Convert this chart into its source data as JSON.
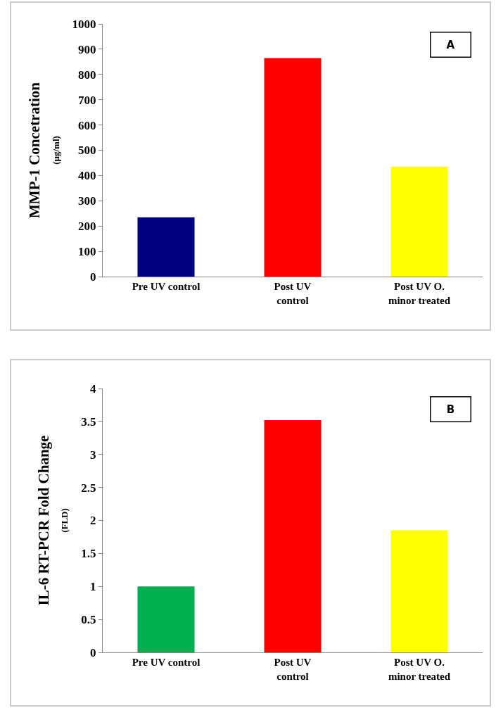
{
  "chart_data": [
    {
      "type": "bar",
      "categories": [
        "Pre UV control",
        "Post UV\ncontrol",
        "Post UV O.\nminor treated"
      ],
      "colors": [
        "#000080",
        "#ff0000",
        "#ffff00"
      ],
      "values": [
        235,
        865,
        435
      ],
      "ylabel": "MMP-1 Concetration\n(µg/ml)",
      "ylim": [
        0,
        1000
      ],
      "yticks": [
        0,
        100,
        200,
        300,
        400,
        500,
        600,
        700,
        800,
        900,
        1000
      ],
      "grid": false,
      "annotations": [
        "A"
      ]
    },
    {
      "type": "bar",
      "categories": [
        "Pre UV control",
        "Post UV\ncontrol",
        "Post UV O.\nminor treated"
      ],
      "colors": [
        "#00b050",
        "#ff0000",
        "#ffff00"
      ],
      "values": [
        1.0,
        3.52,
        1.85
      ],
      "ylabel": "IL-6 RT-PCR Fold Change\n(FLD)",
      "ylim": [
        0,
        4
      ],
      "yticks": [
        0,
        0.5,
        1,
        1.5,
        2,
        2.5,
        3,
        3.5,
        4
      ],
      "grid": false,
      "annotations": [
        "B"
      ]
    }
  ]
}
